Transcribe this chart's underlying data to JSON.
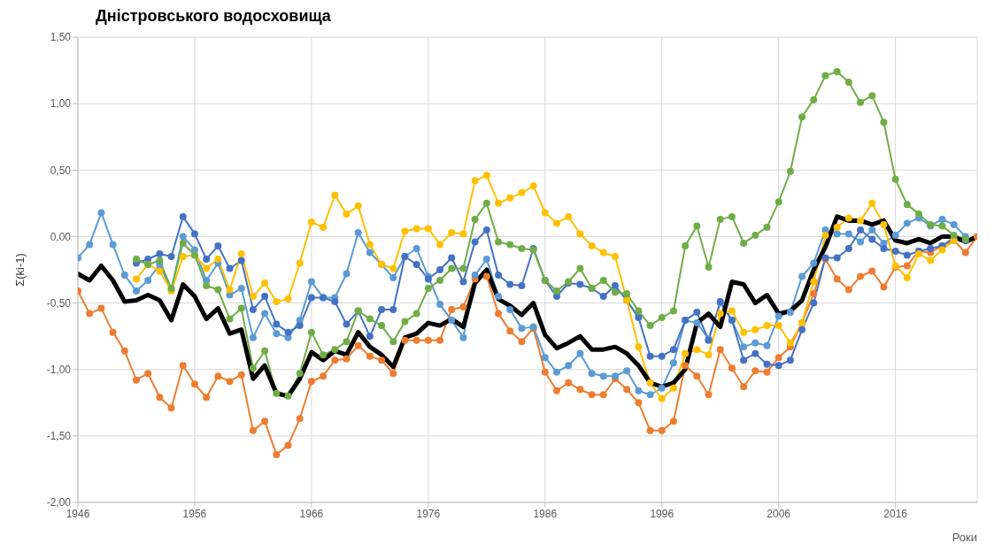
{
  "chart_data": {
    "type": "line",
    "title": "Дністровського водосховища",
    "xlabel": "Роки",
    "ylabel": "Σ(ki-1)",
    "x": [
      1946,
      1947,
      1948,
      1949,
      1950,
      1951,
      1952,
      1953,
      1954,
      1955,
      1956,
      1957,
      1958,
      1959,
      1960,
      1961,
      1962,
      1963,
      1964,
      1965,
      1966,
      1967,
      1968,
      1969,
      1970,
      1971,
      1972,
      1973,
      1974,
      1975,
      1976,
      1977,
      1978,
      1979,
      1980,
      1981,
      1982,
      1983,
      1984,
      1985,
      1986,
      1987,
      1988,
      1989,
      1990,
      1991,
      1992,
      1993,
      1994,
      1995,
      1996,
      1997,
      1998,
      1999,
      2000,
      2001,
      2002,
      2003,
      2004,
      2005,
      2006,
      2007,
      2008,
      2009,
      2010,
      2011,
      2012,
      2013,
      2014,
      2015,
      2016,
      2017,
      2018,
      2019,
      2020,
      2021,
      2022,
      2023
    ],
    "xlim": [
      1946,
      2023
    ],
    "xticks": [
      1946,
      1956,
      1966,
      1976,
      1986,
      1996,
      2006,
      2016
    ],
    "ylim": [
      -2,
      1.5
    ],
    "yticks": [
      {
        "value": -2,
        "label": "-2,00"
      },
      {
        "value": -1.5,
        "label": "-1,50"
      },
      {
        "value": -1,
        "label": "-1,00"
      },
      {
        "value": -0.5,
        "label": "-0,50"
      },
      {
        "value": 0,
        "label": "0,00"
      },
      {
        "value": 0.5,
        "label": "0,50"
      },
      {
        "value": 1,
        "label": "1,00"
      },
      {
        "value": 1.5,
        "label": "1,50"
      }
    ],
    "grid": true,
    "marker": "circle",
    "line_style": "solid",
    "series": [
      {
        "color": "#ed7d31",
        "values": [
          -0.41,
          -0.58,
          -0.54,
          -0.72,
          -0.86,
          -1.08,
          -1.03,
          -1.21,
          -1.29,
          -0.97,
          -1.11,
          -1.21,
          -1.05,
          -1.09,
          -1.04,
          -1.46,
          -1.39,
          -1.64,
          -1.57,
          -1.37,
          -1.09,
          -1.05,
          -0.93,
          -0.92,
          -0.82,
          -0.9,
          -0.93,
          -1.03,
          -0.78,
          -0.78,
          -0.78,
          -0.78,
          -0.55,
          -0.53,
          -0.32,
          -0.3,
          -0.58,
          -0.71,
          -0.79,
          -0.69,
          -1.02,
          -1.16,
          -1.1,
          -1.15,
          -1.19,
          -1.19,
          -1.07,
          -1.15,
          -1.25,
          -1.46,
          -1.46,
          -1.39,
          -0.97,
          -1.05,
          -1.19,
          -0.85,
          -0.99,
          -1.13,
          -1.01,
          -1.02,
          -0.91,
          -0.83,
          -0.65,
          -0.43,
          -0.17,
          -0.32,
          -0.4,
          -0.3,
          -0.26,
          -0.38,
          -0.23,
          -0.22,
          -0.11,
          -0.12,
          -0.07,
          -0.03,
          -0.12,
          0.0
        ]
      },
      {
        "color": "#5b9bd5",
        "values": [
          -0.16,
          -0.06,
          0.18,
          -0.06,
          -0.29,
          -0.41,
          -0.33,
          -0.21,
          -0.4,
          0.0,
          -0.1,
          -0.33,
          -0.2,
          -0.44,
          -0.39,
          -0.76,
          -0.58,
          -0.73,
          -0.76,
          -0.63,
          -0.34,
          -0.46,
          -0.46,
          -0.28,
          0.03,
          -0.12,
          -0.21,
          -0.31,
          -0.15,
          -0.09,
          -0.3,
          -0.51,
          -0.63,
          -0.76,
          -0.29,
          -0.17,
          -0.45,
          -0.55,
          -0.69,
          -0.68,
          -0.91,
          -1.02,
          -0.97,
          -0.88,
          -1.03,
          -1.05,
          -1.05,
          -1.01,
          -1.16,
          -1.19,
          -1.14,
          -0.95,
          -0.63,
          -0.65,
          -0.77,
          -0.5,
          -0.63,
          -0.83,
          -0.8,
          -0.82,
          -0.6,
          -0.57,
          -0.3,
          -0.2,
          0.05,
          0.02,
          0.02,
          -0.04,
          0.05,
          -0.05,
          0.01,
          0.1,
          0.14,
          0.08,
          0.13,
          0.09,
          0.0,
          null
        ]
      },
      {
        "color": "#4472c4",
        "values": [
          null,
          null,
          null,
          null,
          null,
          -0.2,
          -0.17,
          -0.13,
          -0.15,
          0.15,
          0.02,
          -0.17,
          -0.07,
          -0.24,
          -0.18,
          -0.55,
          -0.45,
          -0.66,
          -0.72,
          -0.67,
          -0.46,
          -0.46,
          -0.49,
          -0.66,
          -0.56,
          -0.75,
          -0.55,
          -0.55,
          -0.15,
          -0.21,
          -0.32,
          -0.25,
          -0.16,
          -0.34,
          -0.04,
          0.05,
          -0.29,
          -0.36,
          -0.37,
          -0.09,
          -0.33,
          -0.45,
          -0.35,
          -0.36,
          -0.39,
          -0.45,
          -0.37,
          -0.48,
          -0.61,
          -0.9,
          -0.9,
          -0.85,
          -0.63,
          -0.57,
          -0.78,
          -0.49,
          -0.63,
          -0.93,
          -0.88,
          -0.96,
          -0.97,
          -0.93,
          -0.7,
          -0.5,
          -0.16,
          -0.16,
          -0.09,
          0.05,
          -0.02,
          -0.09,
          -0.11,
          -0.14,
          -0.11,
          -0.09,
          -0.07,
          -0.01,
          -0.03,
          null
        ]
      },
      {
        "color": "#ffc000",
        "values": [
          null,
          null,
          null,
          null,
          null,
          -0.32,
          -0.21,
          -0.26,
          -0.41,
          -0.15,
          -0.14,
          -0.24,
          -0.17,
          -0.4,
          -0.13,
          -0.45,
          -0.35,
          -0.49,
          -0.47,
          -0.2,
          0.11,
          0.07,
          0.31,
          0.17,
          0.23,
          -0.06,
          -0.21,
          -0.24,
          0.04,
          0.06,
          0.06,
          -0.06,
          0.03,
          0.02,
          0.42,
          0.46,
          0.25,
          0.29,
          0.33,
          0.38,
          0.18,
          0.1,
          0.15,
          0.02,
          -0.07,
          -0.12,
          -0.15,
          -0.48,
          -0.83,
          -1.1,
          -1.22,
          -1.14,
          -0.88,
          -0.85,
          -0.89,
          -0.58,
          -0.56,
          -0.72,
          -0.7,
          -0.67,
          -0.67,
          -0.8,
          -0.65,
          -0.34,
          0.01,
          0.07,
          0.14,
          0.12,
          0.25,
          0.09,
          -0.22,
          -0.31,
          -0.13,
          -0.18,
          -0.1,
          -0.03,
          null,
          null
        ]
      },
      {
        "color": "#70ad47",
        "values": [
          null,
          null,
          null,
          null,
          null,
          -0.17,
          -0.21,
          -0.18,
          -0.39,
          -0.05,
          -0.14,
          -0.37,
          -0.4,
          -0.62,
          -0.54,
          -0.99,
          -0.86,
          -1.18,
          -1.2,
          -1.03,
          -0.72,
          -0.89,
          -0.85,
          -0.79,
          -0.56,
          -0.62,
          -0.67,
          -0.79,
          -0.64,
          -0.58,
          -0.39,
          -0.33,
          -0.24,
          -0.24,
          0.13,
          0.25,
          -0.04,
          -0.06,
          -0.09,
          -0.1,
          -0.33,
          -0.41,
          -0.34,
          -0.24,
          -0.39,
          -0.33,
          -0.42,
          -0.43,
          -0.56,
          -0.67,
          -0.61,
          -0.56,
          -0.07,
          0.08,
          -0.23,
          0.13,
          0.15,
          -0.05,
          0.01,
          0.07,
          0.26,
          0.49,
          0.9,
          1.03,
          1.21,
          1.24,
          1.16,
          1.01,
          1.06,
          0.86,
          0.43,
          0.24,
          0.17,
          0.09,
          0.08,
          0.01,
          -0.02,
          null
        ]
      },
      {
        "color": "#000000",
        "marker": "none",
        "values": [
          -0.28,
          -0.33,
          -0.22,
          -0.33,
          -0.49,
          -0.48,
          -0.44,
          -0.48,
          -0.63,
          -0.36,
          -0.45,
          -0.62,
          -0.54,
          -0.73,
          -0.7,
          -1.07,
          -0.97,
          -1.18,
          -1.2,
          -1.07,
          -0.87,
          -0.93,
          -0.86,
          -0.89,
          -0.72,
          -0.83,
          -0.89,
          -0.98,
          -0.76,
          -0.73,
          -0.65,
          -0.67,
          -0.62,
          -0.68,
          -0.35,
          -0.25,
          -0.47,
          -0.52,
          -0.59,
          -0.5,
          -0.74,
          -0.84,
          -0.8,
          -0.75,
          -0.85,
          -0.85,
          -0.83,
          -0.88,
          -0.97,
          -1.1,
          -1.13,
          -1.1,
          -1.0,
          -0.65,
          -0.58,
          -0.68,
          -0.34,
          -0.36,
          -0.5,
          -0.44,
          -0.58,
          -0.56,
          -0.48,
          -0.25,
          -0.08,
          0.15,
          0.12,
          0.12,
          0.09,
          0.12,
          -0.03,
          -0.05,
          -0.02,
          -0.05,
          0.0,
          0.0,
          -0.04,
          0.0
        ]
      }
    ]
  }
}
